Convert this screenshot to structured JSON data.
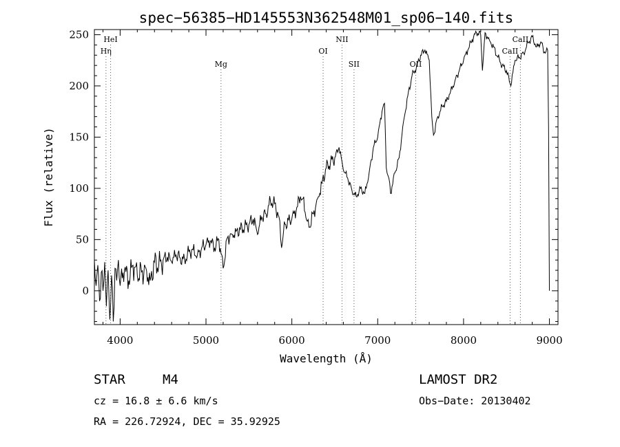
{
  "chart_data": {
    "type": "line",
    "title": "spec−56385−HD145553N362548M01_sp06−140.fits",
    "xlabel": "Wavelength (Å)",
    "ylabel": "Flux (relative)",
    "xlim": [
      3700,
      9100
    ],
    "ylim": [
      -33,
      255
    ],
    "xticks": [
      4000,
      5000,
      6000,
      7000,
      8000,
      9000
    ],
    "yticks": [
      0,
      50,
      100,
      150,
      200,
      250
    ],
    "grid": false,
    "legend": "none",
    "series": [
      {
        "color": "#000000",
        "points": [
          [
            3700,
            30
          ],
          [
            3720,
            5
          ],
          [
            3740,
            25
          ],
          [
            3760,
            -10
          ],
          [
            3780,
            18
          ],
          [
            3800,
            0
          ],
          [
            3820,
            28
          ],
          [
            3840,
            -15
          ],
          [
            3860,
            20
          ],
          [
            3880,
            -28
          ],
          [
            3900,
            15
          ],
          [
            3920,
            -30
          ],
          [
            3940,
            22
          ],
          [
            3960,
            10
          ],
          [
            3980,
            30
          ],
          [
            4000,
            5
          ],
          [
            4050,
            20
          ],
          [
            4100,
            10
          ],
          [
            4150,
            25
          ],
          [
            4200,
            15
          ],
          [
            4250,
            18
          ],
          [
            4300,
            22
          ],
          [
            4350,
            10
          ],
          [
            4400,
            28
          ],
          [
            4450,
            25
          ],
          [
            4500,
            30
          ],
          [
            4550,
            33
          ],
          [
            4600,
            28
          ],
          [
            4650,
            35
          ],
          [
            4700,
            32
          ],
          [
            4750,
            30
          ],
          [
            4800,
            38
          ],
          [
            4850,
            40
          ],
          [
            4900,
            35
          ],
          [
            4950,
            42
          ],
          [
            5000,
            45
          ],
          [
            5050,
            48
          ],
          [
            5100,
            42
          ],
          [
            5150,
            50
          ],
          [
            5200,
            22
          ],
          [
            5250,
            52
          ],
          [
            5300,
            55
          ],
          [
            5350,
            58
          ],
          [
            5400,
            60
          ],
          [
            5450,
            62
          ],
          [
            5500,
            65
          ],
          [
            5550,
            70
          ],
          [
            5600,
            55
          ],
          [
            5650,
            72
          ],
          [
            5700,
            75
          ],
          [
            5750,
            88
          ],
          [
            5800,
            85
          ],
          [
            5850,
            72
          ],
          [
            5880,
            42
          ],
          [
            5920,
            65
          ],
          [
            6000,
            70
          ],
          [
            6050,
            78
          ],
          [
            6100,
            92
          ],
          [
            6130,
            90
          ],
          [
            6180,
            68
          ],
          [
            6200,
            62
          ],
          [
            6250,
            75
          ],
          [
            6300,
            90
          ],
          [
            6350,
            105
          ],
          [
            6400,
            120
          ],
          [
            6450,
            125
          ],
          [
            6500,
            130
          ],
          [
            6550,
            140
          ],
          [
            6600,
            118
          ],
          [
            6650,
            110
          ],
          [
            6700,
            98
          ],
          [
            6750,
            92
          ],
          [
            6800,
            100
          ],
          [
            6850,
            95
          ],
          [
            6900,
            115
          ],
          [
            6950,
            140
          ],
          [
            7000,
            150
          ],
          [
            7050,
            175
          ],
          [
            7080,
            183
          ],
          [
            7100,
            120
          ],
          [
            7130,
            110
          ],
          [
            7150,
            95
          ],
          [
            7200,
            115
          ],
          [
            7250,
            130
          ],
          [
            7300,
            165
          ],
          [
            7350,
            190
          ],
          [
            7400,
            210
          ],
          [
            7450,
            218
          ],
          [
            7500,
            230
          ],
          [
            7550,
            235
          ],
          [
            7600,
            225
          ],
          [
            7630,
            170
          ],
          [
            7650,
            152
          ],
          [
            7700,
            170
          ],
          [
            7750,
            180
          ],
          [
            7800,
            185
          ],
          [
            7850,
            195
          ],
          [
            7900,
            205
          ],
          [
            7950,
            215
          ],
          [
            8000,
            225
          ],
          [
            8050,
            235
          ],
          [
            8100,
            245
          ],
          [
            8150,
            252
          ],
          [
            8200,
            250
          ],
          [
            8220,
            215
          ],
          [
            8250,
            252
          ],
          [
            8300,
            245
          ],
          [
            8350,
            238
          ],
          [
            8400,
            228
          ],
          [
            8450,
            220
          ],
          [
            8500,
            215
          ],
          [
            8550,
            200
          ],
          [
            8600,
            225
          ],
          [
            8650,
            228
          ],
          [
            8700,
            232
          ],
          [
            8750,
            242
          ],
          [
            8800,
            248
          ],
          [
            8850,
            238
          ],
          [
            8900,
            243
          ],
          [
            8950,
            232
          ],
          [
            8980,
            235
          ],
          [
            8990,
            160
          ],
          [
            9000,
            0
          ]
        ]
      }
    ],
    "annotations": [
      {
        "label": "HeI",
        "x": 3889,
        "row": 0
      },
      {
        "label": "Hη",
        "x": 3835,
        "row": 1
      },
      {
        "label": "Mg",
        "x": 5175,
        "row": 2
      },
      {
        "label": "OI",
        "x": 6364,
        "row": 1
      },
      {
        "label": "NII",
        "x": 6584,
        "row": 0
      },
      {
        "label": "SII",
        "x": 6724,
        "row": 2
      },
      {
        "label": "OII",
        "x": 7443,
        "row": 2
      },
      {
        "label": "CaII",
        "x": 8542,
        "row": 1
      },
      {
        "label": "CaII",
        "x": 8662,
        "row": 0
      }
    ]
  },
  "info": {
    "object_class": "STAR",
    "subclass": "M4",
    "survey": "LAMOST DR2",
    "cz": "cz = 16.8 ± 6.6 km/s",
    "obs_date": "Obs−Date: 20130402",
    "coords": "RA = 226.72924, DEC =  35.92925"
  }
}
